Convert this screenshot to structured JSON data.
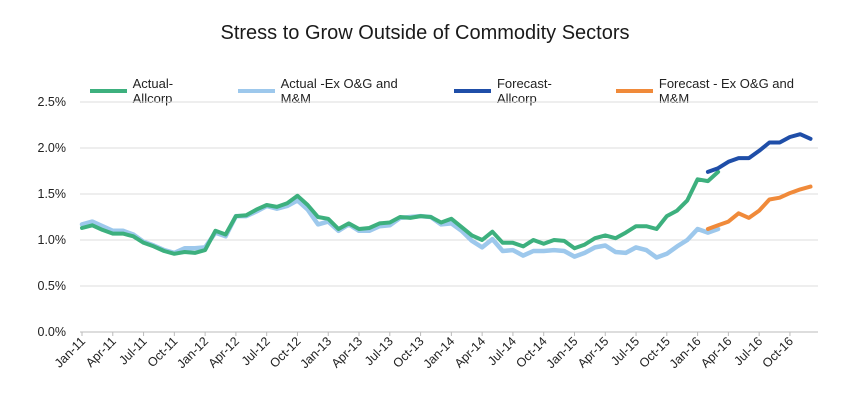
{
  "chart_data": {
    "type": "line",
    "title": "Stress to Grow Outside of Commodity Sectors",
    "xlabel": "",
    "ylabel": "",
    "ylim": [
      0,
      2.5
    ],
    "y_ticks": [
      "0.0%",
      "0.5%",
      "1.0%",
      "1.5%",
      "2.0%",
      "2.5%"
    ],
    "x_tick_labels": [
      "Jan-11",
      "Apr-11",
      "Jul-11",
      "Oct-11",
      "Jan-12",
      "Apr-12",
      "Jul-12",
      "Oct-12",
      "Jan-13",
      "Apr-13",
      "Jul-13",
      "Oct-13",
      "Jan-14",
      "Apr-14",
      "Jul-14",
      "Oct-14",
      "Jan-15",
      "Apr-15",
      "Jul-15",
      "Oct-15",
      "Jan-16",
      "Apr-16",
      "Jul-16",
      "Oct-16"
    ],
    "x_start": "Jan-11",
    "x_months": 72,
    "grid": "horizontal",
    "legend": "top",
    "series": [
      {
        "name": "Actual-Allcorp",
        "color": "#3db07e",
        "start_index": 0,
        "values": [
          1.13,
          1.16,
          1.11,
          1.07,
          1.07,
          1.04,
          0.97,
          0.93,
          0.88,
          0.85,
          0.87,
          0.86,
          0.89,
          1.1,
          1.06,
          1.26,
          1.27,
          1.33,
          1.38,
          1.36,
          1.4,
          1.48,
          1.38,
          1.25,
          1.23,
          1.12,
          1.18,
          1.12,
          1.13,
          1.18,
          1.19,
          1.25,
          1.24,
          1.26,
          1.25,
          1.19,
          1.23,
          1.14,
          1.05,
          1.0,
          1.09,
          0.97,
          0.97,
          0.93,
          1.0,
          0.96,
          1.0,
          0.99,
          0.91,
          0.95,
          1.02,
          1.05,
          1.02,
          1.08,
          1.15,
          1.15,
          1.12,
          1.26,
          1.32,
          1.43,
          1.66,
          1.64,
          1.74
        ]
      },
      {
        "name": "Actual -Ex O&G and M&M",
        "color": "#9dc8ec",
        "start_index": 0,
        "values": [
          1.17,
          1.2,
          1.15,
          1.1,
          1.1,
          1.06,
          0.98,
          0.94,
          0.89,
          0.86,
          0.91,
          0.91,
          0.92,
          1.08,
          1.04,
          1.26,
          1.26,
          1.31,
          1.37,
          1.34,
          1.37,
          1.43,
          1.33,
          1.17,
          1.2,
          1.1,
          1.17,
          1.1,
          1.1,
          1.15,
          1.16,
          1.24,
          1.25,
          1.26,
          1.25,
          1.17,
          1.18,
          1.1,
          0.99,
          0.92,
          1.01,
          0.88,
          0.89,
          0.83,
          0.88,
          0.88,
          0.89,
          0.88,
          0.82,
          0.86,
          0.92,
          0.94,
          0.87,
          0.86,
          0.92,
          0.89,
          0.81,
          0.85,
          0.93,
          1.0,
          1.12,
          1.08,
          1.12
        ]
      },
      {
        "name": "Forecast-Allcorp",
        "color": "#1f4ea8",
        "start_index": 62,
        "values": [
          1.74,
          1.78,
          1.85,
          1.89,
          1.89,
          1.97,
          2.06,
          2.06,
          2.12,
          2.15,
          2.1
        ]
      },
      {
        "name": "Forecast - Ex O&G and M&M",
        "color": "#f08a3a",
        "start_index": 62,
        "values": [
          1.12,
          1.16,
          1.2,
          1.29,
          1.24,
          1.32,
          1.44,
          1.46,
          1.51,
          1.55,
          1.58
        ]
      }
    ]
  }
}
